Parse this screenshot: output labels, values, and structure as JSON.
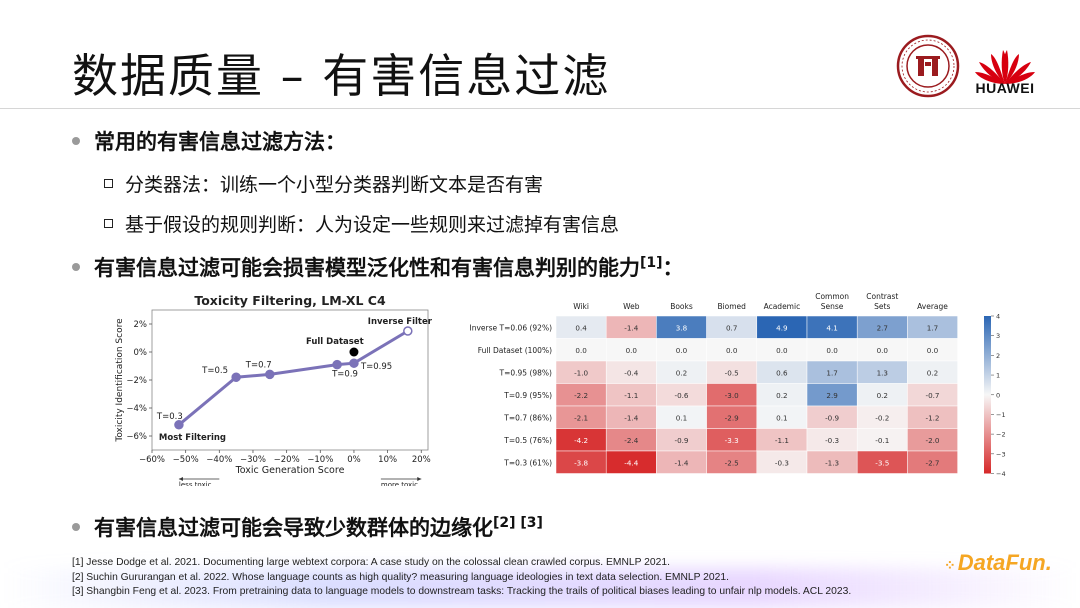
{
  "slide": {
    "title": "数据质量 – 有害信息过滤",
    "logos": {
      "huawei": "HUAWEI",
      "datafun": "DataFun."
    },
    "bullet1": "常用的有害信息过滤方法：",
    "sub1": "分类器法：训练一个小型分类器判断文本是否有害",
    "sub2": "基于假设的规则判断：人为设定一些规则来过滤掉有害信息",
    "bullet2": "有害信息过滤可能会损害模型泛化性和有害信息判别的能力",
    "bullet2_ref": "[1]",
    "bullet2_tail": "：",
    "bullet3": "有害信息过滤可能会导致少数群体的边缘化",
    "bullet3_ref": "[2] [3]",
    "refs": [
      "[1] Jesse Dodge et al. 2021. Documenting large webtext corpora: A case study on the colossal clean crawled corpus. EMNLP 2021.",
      "[2] Suchin Gururangan et al. 2022. Whose language counts as high quality? measuring language ideologies in text data selection. EMNLP 2021.",
      "[3] Shangbin Feng et al. 2023. From pretraining data to language models to downstream tasks: Tracking the trails of political biases leading to unfair nlp models. ACL 2023."
    ],
    "colors": {
      "line": "#7b72b8",
      "neg": "#d62728",
      "pos": "#2b66b4",
      "bullet_dot": "#9a9a9a",
      "datafun": "#f5a623"
    }
  },
  "chart_data": [
    {
      "type": "line",
      "title": "Toxicity Filtering, LM-XL C4",
      "xlabel": "Toxic Generation Score",
      "ylabel": "Toxicity Identification Score",
      "xlim": [
        -60,
        22
      ],
      "ylim": [
        -7,
        3
      ],
      "x_ticks": [
        "−60%",
        "−50%",
        "−40%",
        "−30%",
        "−20%",
        "−10%",
        "0%",
        "10%",
        "20%"
      ],
      "x_tick_values": [
        -60,
        -50,
        -40,
        -30,
        -20,
        -10,
        0,
        10,
        20
      ],
      "y_ticks": [
        "2%",
        "0%",
        "−2%",
        "−4%",
        "−6%"
      ],
      "y_tick_values": [
        2,
        0,
        -2,
        -4,
        -6
      ],
      "x_annotations": {
        "left": "less toxic",
        "right": "more toxic"
      },
      "series": [
        {
          "points": [
            {
              "label": "T=0.3",
              "extra": "Most Filtering",
              "x": -52,
              "y": -5.2
            },
            {
              "label": "T=0.5",
              "x": -35,
              "y": -1.8
            },
            {
              "label": "T=0.7",
              "x": -25,
              "y": -1.6
            },
            {
              "label": "T=0.9",
              "x": -5,
              "y": -0.9
            },
            {
              "label": "T=0.95",
              "x": 0,
              "y": -0.8
            },
            {
              "label": "Inverse Filter",
              "x": 16,
              "y": 1.5
            }
          ]
        }
      ],
      "reference_point": {
        "label": "Full Dataset",
        "x": 0,
        "y": 0
      }
    },
    {
      "type": "heatmap",
      "columns": [
        "Wiki",
        "Web",
        "Books",
        "Biomed",
        "Academic",
        "Common Sense",
        "Contrast Sets",
        "Average"
      ],
      "rows": [
        {
          "label": "Inverse T=0.06 (92%)",
          "values": [
            0.4,
            -1.4,
            3.8,
            0.7,
            4.9,
            4.1,
            2.7,
            1.7
          ]
        },
        {
          "label": "Full Dataset (100%)",
          "values": [
            0.0,
            0.0,
            0.0,
            0.0,
            0.0,
            0.0,
            0.0,
            0.0
          ]
        },
        {
          "label": "T=0.95 (98%)",
          "values": [
            -1.0,
            -0.4,
            0.2,
            -0.5,
            0.6,
            1.7,
            1.3,
            0.2
          ]
        },
        {
          "label": "T=0.9 (95%)",
          "values": [
            -2.2,
            -1.1,
            -0.6,
            -3.0,
            0.2,
            2.9,
            0.2,
            -0.7
          ]
        },
        {
          "label": "T=0.7 (86%)",
          "values": [
            -2.1,
            -1.4,
            0.1,
            -2.9,
            0.1,
            -0.9,
            -0.2,
            -1.2
          ]
        },
        {
          "label": "T=0.5 (76%)",
          "values": [
            -4.2,
            -2.4,
            -0.9,
            -3.3,
            -1.1,
            -0.3,
            -0.1,
            -2.0
          ]
        },
        {
          "label": "T=0.3 (61%)",
          "values": [
            -3.8,
            -4.4,
            -1.4,
            -2.5,
            -0.3,
            -1.3,
            -3.5,
            -2.7
          ]
        }
      ],
      "colorbar": {
        "min": -4,
        "max": 4,
        "ticks": [
          4,
          3,
          2,
          1,
          0,
          -1,
          -2,
          -3,
          -4
        ]
      }
    }
  ]
}
